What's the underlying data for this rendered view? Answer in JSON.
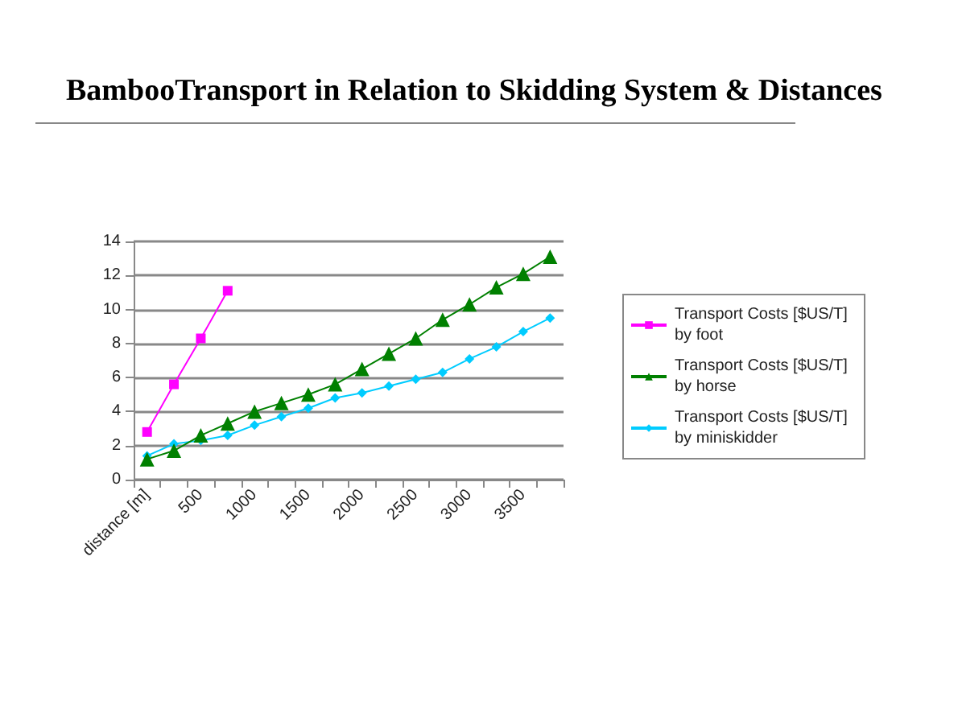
{
  "chart_data": {
    "type": "line",
    "title": "BambooTransport in Relation to Skidding System & Distances",
    "categories": [
      "distance [m]",
      null,
      "500",
      null,
      "1000",
      null,
      "1500",
      null,
      "2000",
      null,
      "2500",
      null,
      "3000",
      null,
      "3500",
      null
    ],
    "series": [
      {
        "name": "Transport Costs [$US/T] by foot",
        "color": "#ff00ff",
        "marker": "square",
        "values": [
          2.8,
          5.6,
          8.3,
          11.1,
          null,
          null,
          null,
          null,
          null,
          null,
          null,
          null,
          null,
          null,
          null,
          null
        ]
      },
      {
        "name": "Transport Costs [$US/T] by horse",
        "color": "#008000",
        "marker": "triangle",
        "values": [
          1.2,
          1.7,
          2.6,
          3.3,
          4.0,
          4.5,
          5.0,
          5.6,
          6.5,
          7.4,
          8.3,
          9.4,
          10.3,
          11.3,
          12.1,
          13.1
        ]
      },
      {
        "name": "Transport Costs [$US/T] by miniskidder",
        "color": "#00ccff",
        "marker": "diamond",
        "values": [
          1.4,
          2.1,
          2.3,
          2.6,
          3.2,
          3.7,
          4.2,
          4.8,
          5.1,
          5.5,
          5.9,
          6.3,
          7.1,
          7.8,
          8.7,
          9.5
        ]
      }
    ],
    "ylim": [
      0,
      14
    ],
    "yticks": [
      0,
      2,
      4,
      6,
      8,
      10,
      12,
      14
    ],
    "grid": "y",
    "legend": "right"
  }
}
